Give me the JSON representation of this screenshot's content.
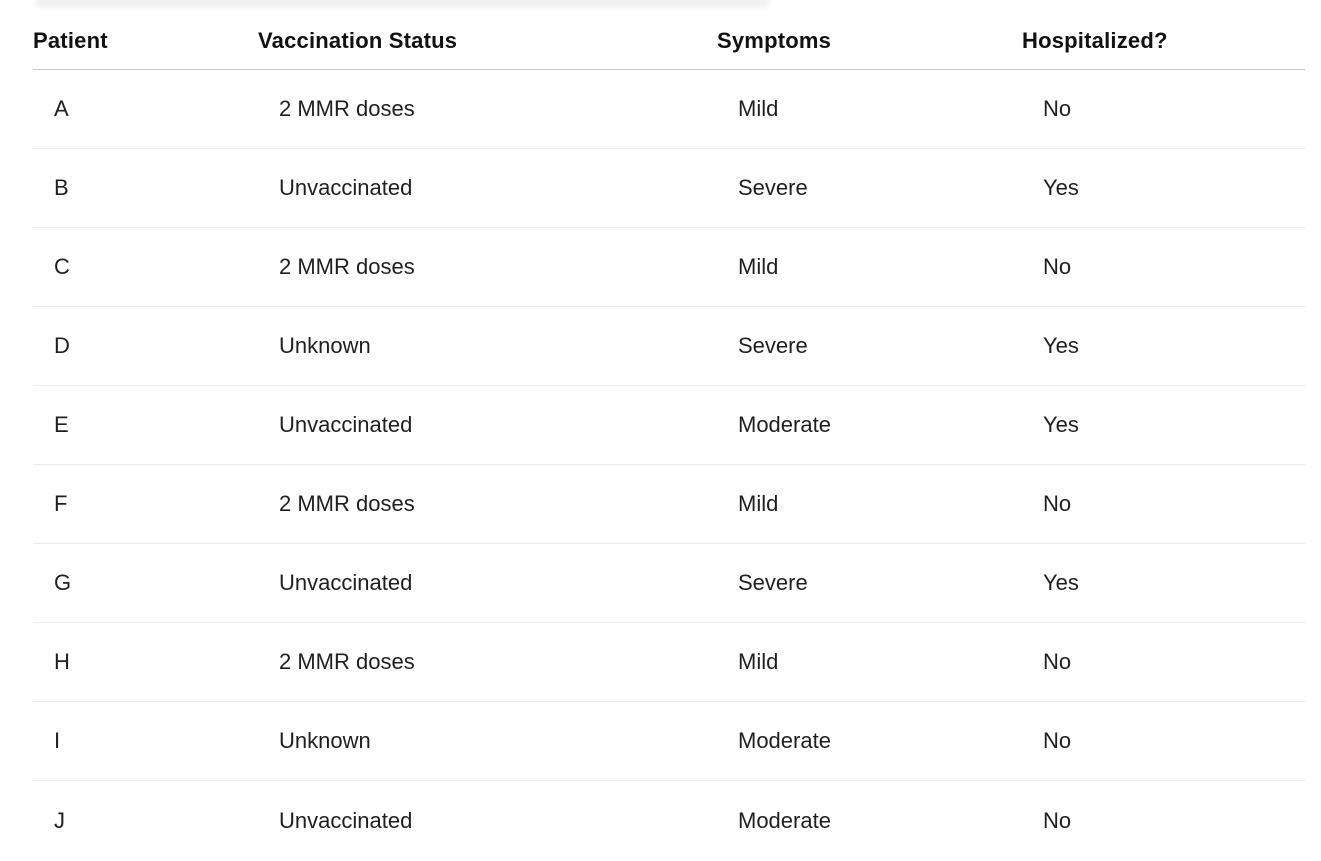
{
  "chart_data": {
    "type": "table",
    "columns": [
      "Patient",
      "Vaccination Status",
      "Symptoms",
      "Hospitalized?"
    ],
    "rows": [
      [
        "A",
        "2 MMR doses",
        "Mild",
        "No"
      ],
      [
        "B",
        "Unvaccinated",
        "Severe",
        "Yes"
      ],
      [
        "C",
        "2 MMR doses",
        "Mild",
        "No"
      ],
      [
        "D",
        "Unknown",
        "Severe",
        "Yes"
      ],
      [
        "E",
        "Unvaccinated",
        "Moderate",
        "Yes"
      ],
      [
        "F",
        "2 MMR doses",
        "Mild",
        "No"
      ],
      [
        "G",
        "Unvaccinated",
        "Severe",
        "Yes"
      ],
      [
        "H",
        "2 MMR doses",
        "Mild",
        "No"
      ],
      [
        "I",
        "Unknown",
        "Moderate",
        "No"
      ],
      [
        "J",
        "Unvaccinated",
        "Moderate",
        "No"
      ]
    ],
    "title": "",
    "layout": {
      "grid": "horizontal-row-dividers",
      "legend": "none"
    }
  },
  "colors": {
    "background": "#ffffff",
    "header_text": "#111111",
    "cell_text": "#1f1f1f",
    "header_divider": "#c9c9c9",
    "row_divider": "#ebebeb"
  }
}
